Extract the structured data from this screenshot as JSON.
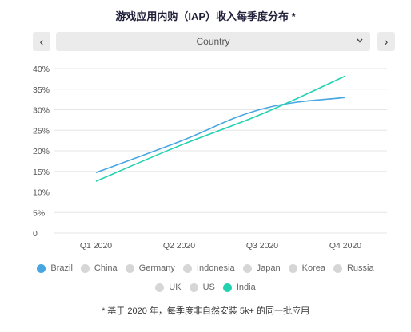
{
  "title": "游戏应用内购（IAP）收入每季度分布 *",
  "nav": {
    "prev_icon": "‹",
    "next_icon": "›"
  },
  "country_select": {
    "label": "Country",
    "chevron_icon": "chevron-down-icon"
  },
  "footnote": "* 基于 2020 年，每季度非自然安装 5k+ 的同一批应用",
  "colors": {
    "brazil": "#47a6e2",
    "india": "#22d1b0",
    "inactive": "#d6d6d6",
    "grid": "#e6e6e6"
  },
  "legend": {
    "row1": [
      {
        "label": "Brazil",
        "active": true,
        "color": "#47a6e2"
      },
      {
        "label": "China",
        "active": false,
        "color": "#d6d6d6"
      },
      {
        "label": "Germany",
        "active": false,
        "color": "#d6d6d6"
      },
      {
        "label": "Indonesia",
        "active": false,
        "color": "#d6d6d6"
      },
      {
        "label": "Japan",
        "active": false,
        "color": "#d6d6d6"
      },
      {
        "label": "Korea",
        "active": false,
        "color": "#d6d6d6"
      },
      {
        "label": "Russia",
        "active": false,
        "color": "#d6d6d6"
      }
    ],
    "row2": [
      {
        "label": "UK",
        "active": false,
        "color": "#d6d6d6"
      },
      {
        "label": "US",
        "active": false,
        "color": "#d6d6d6"
      },
      {
        "label": "India",
        "active": true,
        "color": "#22d1b0"
      }
    ]
  },
  "chart_data": {
    "type": "line",
    "title": "游戏应用内购（IAP）收入每季度分布 *",
    "categories": [
      "Q1 2020",
      "Q2 2020",
      "Q3 2020",
      "Q4 2020"
    ],
    "y_ticks": [
      "0",
      "5%",
      "10%",
      "15%",
      "20%",
      "25%",
      "30%",
      "35%",
      "40%"
    ],
    "ylim": [
      0,
      40
    ],
    "grid": true,
    "legend_position": "bottom",
    "series": [
      {
        "name": "Brazil",
        "color": "#47a6e2",
        "values": [
          14.7,
          22.2,
          30.2,
          33.0
        ]
      },
      {
        "name": "India",
        "color": "#22d1b0",
        "values": [
          12.6,
          21.2,
          29.0,
          38.2
        ]
      }
    ]
  }
}
